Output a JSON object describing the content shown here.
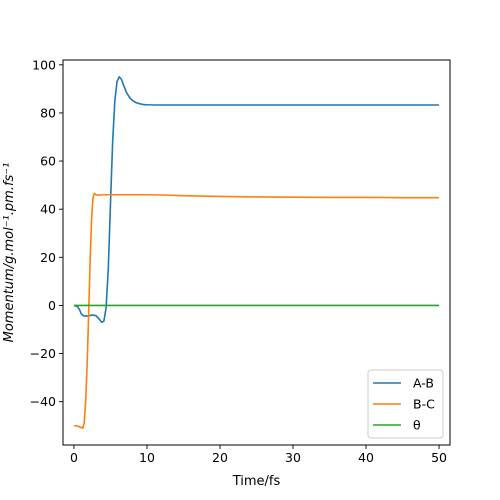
{
  "chart_data": {
    "type": "line",
    "xlabel": "Time/fs",
    "ylabel": "Momentum/g.mol⁻¹.pm.fs⁻¹",
    "xlim": [
      -1.5,
      51.5
    ],
    "ylim": [
      -58,
      102
    ],
    "x_ticks": [
      0,
      10,
      20,
      30,
      40,
      50
    ],
    "y_ticks": [
      -40,
      -20,
      0,
      20,
      40,
      60,
      80,
      100
    ],
    "x_tick_labels": [
      "0",
      "10",
      "20",
      "30",
      "40",
      "50"
    ],
    "y_tick_labels": [
      "−40",
      "−20",
      "0",
      "20",
      "40",
      "60",
      "80",
      "100"
    ],
    "grid": false,
    "legend_position": "bottom-right",
    "series": [
      {
        "name": "A-B",
        "color": "#1f77b4",
        "x": [
          0,
          0.5,
          0.8,
          1.0,
          1.3,
          1.6,
          2.0,
          2.5,
          3.0,
          3.4,
          3.8,
          4.1,
          4.4,
          4.7,
          5.0,
          5.3,
          5.6,
          5.9,
          6.2,
          6.5,
          6.8,
          7.2,
          7.6,
          8.0,
          8.5,
          9.0,
          9.5,
          10.0,
          11.0,
          12.0,
          14.0,
          20.0,
          30.0,
          40.0,
          50.0
        ],
        "y": [
          0,
          -0.5,
          -2.0,
          -3.5,
          -4.3,
          -4.4,
          -4.3,
          -4.0,
          -4.2,
          -5.5,
          -7.0,
          -6.5,
          -1.0,
          15.0,
          42.0,
          68.0,
          85.0,
          93.0,
          95.0,
          94.0,
          91.5,
          88.5,
          86.5,
          85.2,
          84.3,
          83.8,
          83.5,
          83.4,
          83.3,
          83.3,
          83.3,
          83.3,
          83.3,
          83.3,
          83.3
        ]
      },
      {
        "name": "B-C",
        "color": "#ff7f0e",
        "x": [
          0,
          0.4,
          0.8,
          1.2,
          1.4,
          1.6,
          1.8,
          2.0,
          2.2,
          2.4,
          2.6,
          2.8,
          3.0,
          3.3,
          3.6,
          4.0,
          5.0,
          6.0,
          8.0,
          10.0,
          12.0,
          15.0,
          20.0,
          25.0,
          30.0,
          35.0,
          40.0,
          45.0,
          50.0
        ],
        "y": [
          -50.0,
          -50.0,
          -50.5,
          -51.0,
          -49.0,
          -40.0,
          -25.0,
          -5.0,
          17.0,
          35.0,
          44.5,
          46.5,
          46.0,
          45.8,
          45.9,
          46.0,
          46.0,
          46.0,
          46.0,
          46.0,
          45.9,
          45.6,
          45.3,
          45.1,
          45.0,
          44.9,
          44.9,
          44.8,
          44.8
        ]
      },
      {
        "name": "θ",
        "color": "#2ca02c",
        "x": [
          0,
          50
        ],
        "y": [
          0,
          0
        ]
      }
    ]
  }
}
